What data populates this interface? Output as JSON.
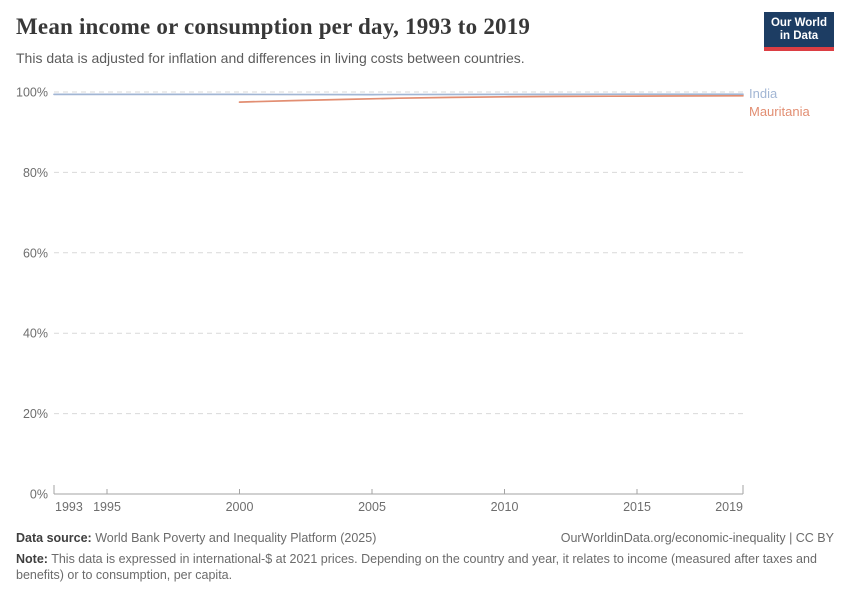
{
  "logo": {
    "line1": "Our World",
    "line2": "in Data",
    "bg_color": "#1d3d63",
    "accent_color": "#dc3e43"
  },
  "chart_data": {
    "type": "line",
    "title": "Mean income or consumption per day, 1993 to 2019",
    "subtitle": "This data is adjusted for inflation and differences in living costs between countries.",
    "grid": "horizontal dashed",
    "legend_position": "right of line ends",
    "x": {
      "min": 1993,
      "max": 2019,
      "ticks": [
        1993,
        1995,
        2000,
        2005,
        2010,
        2015,
        2019
      ]
    },
    "y": {
      "min": 0,
      "max": 100,
      "ticks": [
        0,
        20,
        40,
        60,
        80,
        100
      ],
      "tick_suffix": "%"
    },
    "series": [
      {
        "name": "India",
        "color": "#a2b6d4",
        "points": [
          [
            1993,
            99.4
          ],
          [
            1995,
            99.4
          ],
          [
            2000,
            99.4
          ],
          [
            2005,
            99.35
          ],
          [
            2010,
            99.4
          ],
          [
            2015,
            99.45
          ],
          [
            2019,
            99.45
          ]
        ]
      },
      {
        "name": "Mauritania",
        "color": "#e28e72",
        "points": [
          [
            2000,
            97.5
          ],
          [
            2002,
            97.85
          ],
          [
            2004,
            98.15
          ],
          [
            2006,
            98.45
          ],
          [
            2008,
            98.65
          ],
          [
            2010,
            98.8
          ],
          [
            2012,
            98.9
          ],
          [
            2014,
            98.95
          ],
          [
            2016,
            99.0
          ],
          [
            2019,
            99.05
          ]
        ]
      }
    ]
  },
  "footer": {
    "datasource_label": "Data source:",
    "datasource_value": " World Bank Poverty and Inequality Platform (2025)",
    "attribution": "OurWorldinData.org/economic-inequality | CC BY",
    "note_label": "Note:",
    "note_text": " This data is expressed in international-$ at 2021 prices. Depending on the country and year, it relates to income (measured after taxes and benefits) or to consumption, per capita."
  }
}
